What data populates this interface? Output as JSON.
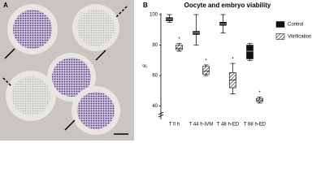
{
  "panel_a": {
    "label": "A"
  },
  "chart_data": {
    "type": "box",
    "panel_label": "B",
    "title": "Oocyte and embryo viability",
    "y_label": "%",
    "categories": [
      "T 0 h",
      "T 44 h-IVM",
      "T 48 h-ED",
      "T 68 h-ED"
    ],
    "ylim": [
      35,
      100
    ],
    "yticks": [
      40,
      60,
      80,
      100
    ],
    "series": [
      {
        "name": "Control",
        "color": "#111111",
        "pattern": "solid",
        "min": [
          95,
          80,
          88,
          70
        ],
        "q1": [
          96,
          87,
          93,
          71
        ],
        "median": [
          97,
          88,
          94,
          76
        ],
        "q3": [
          98,
          89,
          95,
          80
        ],
        "max": [
          100,
          100,
          100,
          81
        ]
      },
      {
        "name": "Vitrification",
        "color": "#555555",
        "pattern": "hatch",
        "min": [
          76,
          60,
          48,
          42
        ],
        "q1": [
          77,
          61,
          52,
          43
        ],
        "median": [
          78,
          63,
          57,
          44
        ],
        "q3": [
          80,
          66,
          62,
          45
        ],
        "max": [
          81,
          67,
          68,
          46
        ]
      }
    ],
    "annotations": [
      "*",
      "*",
      "*",
      "*"
    ],
    "legend": "right"
  }
}
